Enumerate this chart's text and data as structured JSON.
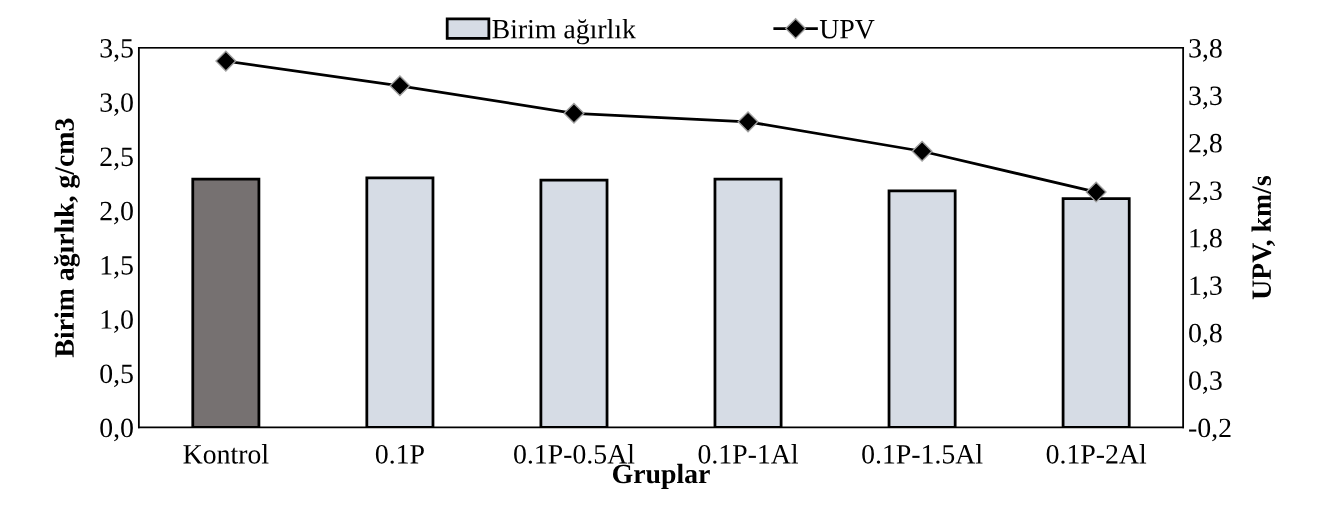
{
  "chart_data": {
    "type": "bar",
    "xlabel": "Gruplar",
    "ylabel": "Birim ağırlık, g/cm3",
    "y2label": "UPV, km/s",
    "categories": [
      "Kontrol",
      "0.1P",
      "0.1P-0.5Al",
      "0.1P-1Al",
      "0.1P-1.5Al",
      "0.1P-2Al"
    ],
    "series": [
      {
        "name": "Birim ağırlık",
        "color": "#d6dce5",
        "colors": [
          "#767171",
          "#d6dce5",
          "#d6dce5",
          "#d6dce5",
          "#d6dce5",
          "#d6dce5"
        ],
        "values": [
          2.29,
          2.3,
          2.28,
          2.29,
          2.18,
          2.11
        ]
      },
      {
        "name": "UPV",
        "type": "line",
        "axis": "y2",
        "color": "#000000",
        "values": [
          3.66,
          3.4,
          3.11,
          3.02,
          2.71,
          2.28
        ]
      }
    ],
    "ylim": [
      0,
      3.5
    ],
    "yticks": [
      {
        "value": 0,
        "label": "0,0"
      },
      {
        "value": 0.5,
        "label": "0,5"
      },
      {
        "value": 1.0,
        "label": "1,0"
      },
      {
        "value": 1.5,
        "label": "1,5"
      },
      {
        "value": 2.0,
        "label": "2,0"
      },
      {
        "value": 2.5,
        "label": "2,5"
      },
      {
        "value": 3.0,
        "label": "3,0"
      },
      {
        "value": 3.5,
        "label": "3,5"
      }
    ],
    "y2lim": [
      -0.2,
      3.8
    ],
    "y2ticks": [
      {
        "value": -0.2,
        "label": "-0,2"
      },
      {
        "value": 0.3,
        "label": "0,3"
      },
      {
        "value": 0.8,
        "label": "0,8"
      },
      {
        "value": 1.3,
        "label": "1,3"
      },
      {
        "value": 1.8,
        "label": "1,8"
      },
      {
        "value": 2.3,
        "label": "2,3"
      },
      {
        "value": 2.8,
        "label": "2,8"
      },
      {
        "value": 3.3,
        "label": "3,3"
      },
      {
        "value": 3.8,
        "label": "3,8"
      }
    ],
    "legend": "top",
    "marker": "diamond",
    "line_style": "solid",
    "grid": false
  }
}
